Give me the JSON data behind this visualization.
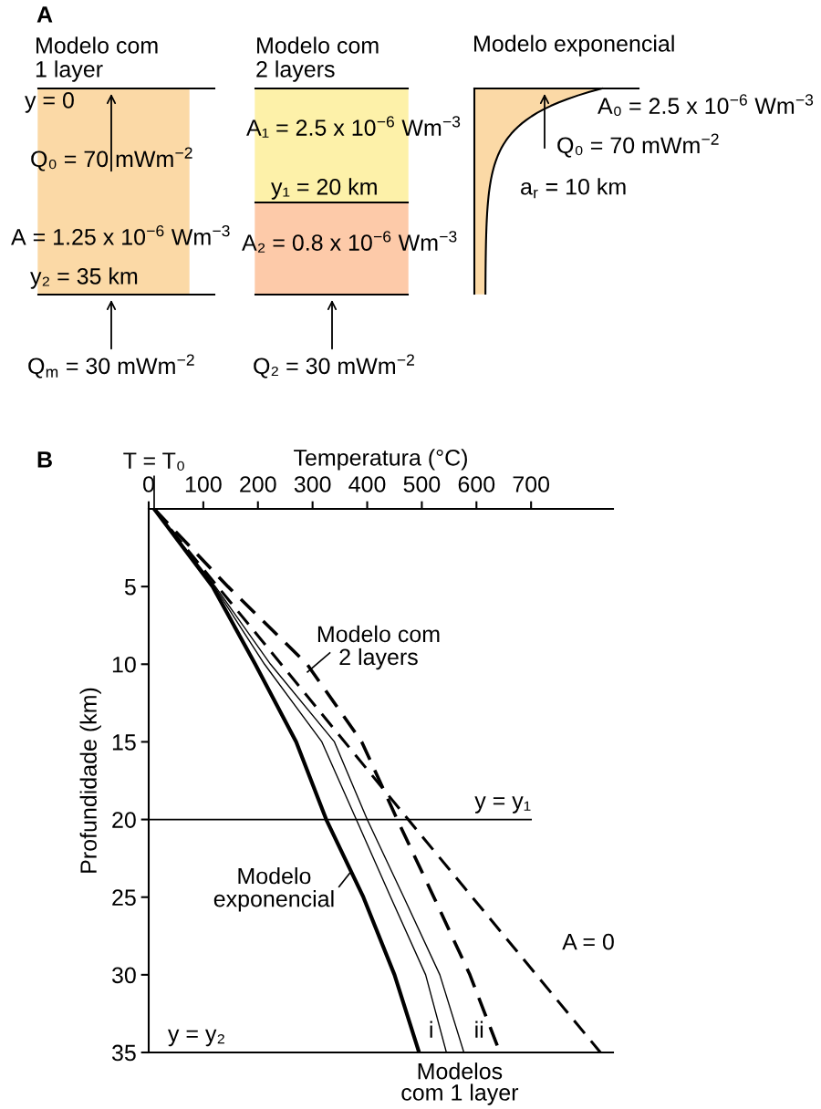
{
  "chart_data": [
    {
      "type": "other",
      "title": "A",
      "annotations": [
        "Modelo com\n1 layer",
        "y = 0",
        "Q₀ = 70 mWm$^{−2}$",
        "A = 1.25 x 10$^{−6}$ Wm$^{−3}$",
        "y₂ = 35 km",
        "Q$_{m}$ = 30 mWm$^{−2}$",
        "Modelo com\n2 layers",
        "A₁ = 2.5 x 10$^{−6}$ Wm$^{−3}$",
        "y₁ = 20 km",
        "A₂ = 0.8 x 10$^{−6}$ Wm$^{−3}$",
        "Q₂ = 30 mWm$^{−2}$",
        "Modelo exponencial",
        "A₀ = 2.5 x 10$^{−6}$ Wm$^{−3}$",
        "Q₀ = 70 mWm$^{−2}$",
        "a$_{r}$ = 10 km"
      ]
    },
    {
      "type": "line",
      "title": "B",
      "xlabel": "Temperatura (°C)",
      "ylabel": "Profundidade (km)",
      "xlim": [
        0,
        850
      ],
      "xticks": [
        0,
        100,
        200,
        300,
        400,
        500,
        600,
        700
      ],
      "ylim": [
        35,
        0
      ],
      "yticks": [
        5,
        10,
        15,
        20,
        25,
        30,
        35
      ],
      "series": [
        {
          "color": "#000000",
          "line_style": "solid",
          "x": [
            10,
            117,
            195,
            270,
            325,
            393,
            450,
            495
          ],
          "values": [
            0,
            5,
            10,
            15,
            20,
            25,
            30,
            35
          ]
        },
        {
          "color": "#000000",
          "line_style": "solid",
          "x": [
            10,
            120,
            212,
            317,
            380,
            443,
            507,
            545
          ],
          "values": [
            0,
            5,
            10,
            15,
            20,
            25,
            30,
            35
          ]
        },
        {
          "color": "#000000",
          "line_style": "solid",
          "x": [
            10,
            122,
            223,
            340,
            400,
            467,
            533,
            577
          ],
          "values": [
            0,
            5,
            10,
            15,
            20,
            25,
            30,
            35
          ]
        },
        {
          "color": "#000000",
          "line_style": "dashed",
          "x": [
            10,
            145,
            290,
            390,
            455,
            522,
            588,
            643
          ],
          "values": [
            0,
            5,
            10,
            15,
            20,
            25,
            30,
            35
          ]
        },
        {
          "color": "#000000",
          "line_style": "dashed",
          "x": [
            10,
            475,
            827
          ],
          "values": [
            0,
            20,
            35
          ]
        }
      ],
      "ref_lines": [
        {
          "axis": "x",
          "value": 10,
          "label": "T = T₀"
        },
        {
          "axis": "y",
          "value": 20,
          "label": "y = y₁"
        },
        {
          "axis": "y",
          "value": 35,
          "label": "y = y₂"
        }
      ],
      "annotations": [
        "Modelo com\n2 layers",
        "Modelo\nexponencial",
        {
          "text": "A = 0",
          "x": 664,
          "y": 28
        },
        {
          "text": "i",
          "x": 545,
          "y": 35
        },
        {
          "text": "ii",
          "x": 577,
          "y": 35
        },
        {
          "text": "Modelos\ncom 1 layer",
          "x": 560,
          "y": 35
        }
      ]
    }
  ]
}
